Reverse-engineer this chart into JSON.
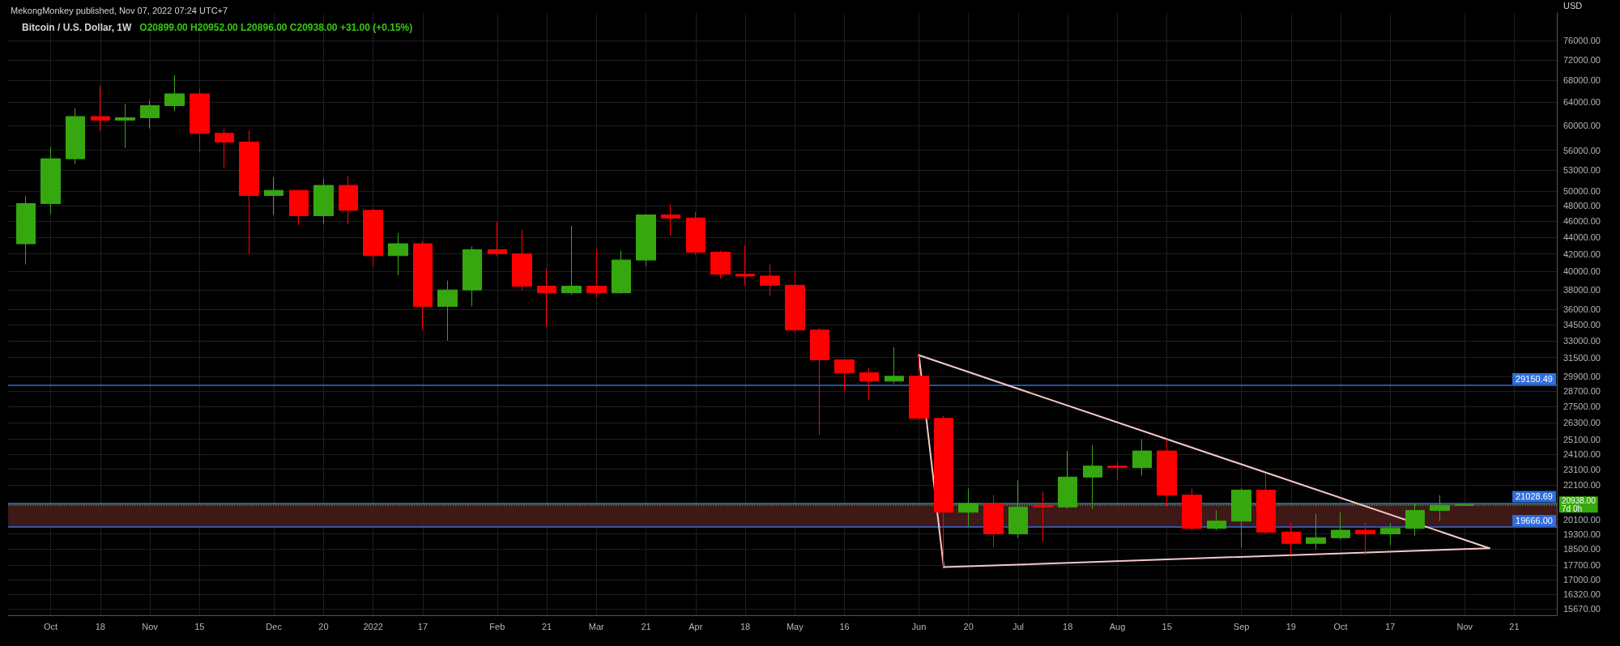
{
  "chart_data": {
    "type": "candlestick",
    "title": "Bitcoin / U.S. Dollar, 1W",
    "subtitle": "O20899.00 H20952.00 L20896.00 C20938.00 +31.00 (+0.15%)",
    "ylabel": "USD",
    "annotations": [
      "MekongMonkey published, Nov 07, 2022 07:24 UTC+7"
    ],
    "log": true,
    "grid": true,
    "xlim": [
      "2021-09-22",
      "2022-12-03"
    ],
    "xticks": [
      {
        "value": "2021-10-04",
        "label": "Oct"
      },
      {
        "value": "2021-10-18",
        "label": "18"
      },
      {
        "value": "2021-11-01",
        "label": "Nov"
      },
      {
        "value": "2021-11-15",
        "label": "15"
      },
      {
        "value": "2021-12-06",
        "label": "Dec"
      },
      {
        "value": "2021-12-20",
        "label": "20"
      },
      {
        "value": "2022-01-03",
        "label": "2022"
      },
      {
        "value": "2022-01-17",
        "label": "17"
      },
      {
        "value": "2022-02-07",
        "label": "Feb"
      },
      {
        "value": "2022-02-21",
        "label": "21"
      },
      {
        "value": "2022-03-07",
        "label": "Mar"
      },
      {
        "value": "2022-03-21",
        "label": "21"
      },
      {
        "value": "2022-04-04",
        "label": "Apr"
      },
      {
        "value": "2022-04-18",
        "label": "18"
      },
      {
        "value": "2022-05-02",
        "label": "May"
      },
      {
        "value": "2022-05-16",
        "label": "16"
      },
      {
        "value": "2022-06-06",
        "label": "Jun"
      },
      {
        "value": "2022-06-20",
        "label": "20"
      },
      {
        "value": "2022-07-04",
        "label": "Jul"
      },
      {
        "value": "2022-07-18",
        "label": "18"
      },
      {
        "value": "2022-08-01",
        "label": "Aug"
      },
      {
        "value": "2022-08-15",
        "label": "15"
      },
      {
        "value": "2022-09-05",
        "label": "Sep"
      },
      {
        "value": "2022-09-19",
        "label": "19"
      },
      {
        "value": "2022-10-03",
        "label": "Oct"
      },
      {
        "value": "2022-10-17",
        "label": "17"
      },
      {
        "value": "2022-11-07",
        "label": "Nov"
      },
      {
        "value": "2022-11-21",
        "label": "21"
      }
    ],
    "ylim": [
      15400,
      82000
    ],
    "yticks": [
      {
        "value": 15670,
        "label": "15670.00"
      },
      {
        "value": 16320,
        "label": "16320.00"
      },
      {
        "value": 17000,
        "label": "17000.00"
      },
      {
        "value": 17700,
        "label": "17700.00"
      },
      {
        "value": 18500,
        "label": "18500.00"
      },
      {
        "value": 19300,
        "label": "19300.00"
      },
      {
        "value": 20100,
        "label": "20100.00"
      },
      {
        "value": 22100,
        "label": "22100.00"
      },
      {
        "value": 23100,
        "label": "23100.00"
      },
      {
        "value": 24100,
        "label": "24100.00"
      },
      {
        "value": 25100,
        "label": "25100.00"
      },
      {
        "value": 26300,
        "label": "26300.00"
      },
      {
        "value": 27500,
        "label": "27500.00"
      },
      {
        "value": 28700,
        "label": "28700.00"
      },
      {
        "value": 29900,
        "label": "29900.00"
      },
      {
        "value": 31500,
        "label": "31500.00"
      },
      {
        "value": 33000,
        "label": "33000.00"
      },
      {
        "value": 34500,
        "label": "34500.00"
      },
      {
        "value": 36000,
        "label": "36000.00"
      },
      {
        "value": 38000,
        "label": "38000.00"
      },
      {
        "value": 40000,
        "label": "40000.00"
      },
      {
        "value": 42000,
        "label": "42000.00"
      },
      {
        "value": 44000,
        "label": "44000.00"
      },
      {
        "value": 46000,
        "label": "46000.00"
      },
      {
        "value": 48000,
        "label": "48000.00"
      },
      {
        "value": 50000,
        "label": "50000.00"
      },
      {
        "value": 53000,
        "label": "53000.00"
      },
      {
        "value": 56000,
        "label": "56000.00"
      },
      {
        "value": 60000,
        "label": "60000.00"
      },
      {
        "value": 64000,
        "label": "64000.00"
      },
      {
        "value": 68000,
        "label": "68000.00"
      },
      {
        "value": 72000,
        "label": "72000.00"
      },
      {
        "value": 76000,
        "label": "76000.00"
      }
    ],
    "ref_lines": [
      {
        "axis": "y",
        "value": 29150.49,
        "label": "29150.49",
        "color": "#2f6fdc",
        "line_style": "solid"
      },
      {
        "axis": "y",
        "value": 21028.69,
        "label": "21028.69",
        "color": "#2f6fdc",
        "line_style": "solid"
      },
      {
        "axis": "y",
        "value": 19666,
        "label": "19666.00",
        "color": "#2f6fdc",
        "line_style": "solid"
      },
      {
        "axis": "y",
        "value": 20938,
        "label": "20938.00\n7d 0h",
        "color": "#37a710",
        "line_style": "dotted"
      }
    ],
    "bands": [
      {
        "axis": "y",
        "from": 19666,
        "to": 21028.69,
        "color": "#4a1c1c"
      }
    ],
    "series": [
      {
        "type": "candlestick",
        "x": [
          "2021-09-27",
          "2021-10-04",
          "2021-10-11",
          "2021-10-18",
          "2021-10-25",
          "2021-11-01",
          "2021-11-08",
          "2021-11-15",
          "2021-11-22",
          "2021-11-29",
          "2021-12-06",
          "2021-12-13",
          "2021-12-20",
          "2021-12-27",
          "2022-01-03",
          "2022-01-10",
          "2022-01-17",
          "2022-01-24",
          "2022-01-31",
          "2022-02-07",
          "2022-02-14",
          "2022-02-21",
          "2022-02-28",
          "2022-03-07",
          "2022-03-14",
          "2022-03-21",
          "2022-03-28",
          "2022-04-04",
          "2022-04-11",
          "2022-04-18",
          "2022-04-25",
          "2022-05-02",
          "2022-05-09",
          "2022-05-16",
          "2022-05-23",
          "2022-05-30",
          "2022-06-06",
          "2022-06-13",
          "2022-06-20",
          "2022-06-27",
          "2022-07-04",
          "2022-07-11",
          "2022-07-18",
          "2022-07-25",
          "2022-08-01",
          "2022-08-08",
          "2022-08-15",
          "2022-08-22",
          "2022-08-29",
          "2022-09-05",
          "2022-09-12",
          "2022-09-19",
          "2022-09-26",
          "2022-10-03",
          "2022-10-10",
          "2022-10-17",
          "2022-10-24",
          "2022-10-31",
          "2022-11-07"
        ],
        "ohlc": [
          [
            43200,
            49300,
            40800,
            48300
          ],
          [
            48300,
            56500,
            46900,
            54700
          ],
          [
            54700,
            62900,
            53900,
            61500
          ],
          [
            61500,
            67000,
            59100,
            60900
          ],
          [
            60900,
            63700,
            56400,
            61300
          ],
          [
            61300,
            64300,
            59500,
            63400
          ],
          [
            63400,
            69000,
            62400,
            65500
          ],
          [
            65500,
            66400,
            55700,
            58700
          ],
          [
            58700,
            59500,
            53300,
            57300
          ],
          [
            57300,
            59200,
            42000,
            49400
          ],
          [
            49400,
            52000,
            46800,
            50100
          ],
          [
            50100,
            50200,
            45500,
            46700
          ],
          [
            46700,
            51800,
            45600,
            50800
          ],
          [
            50800,
            52100,
            45600,
            47400
          ],
          [
            47400,
            47600,
            40600,
            41800
          ],
          [
            41800,
            44500,
            39600,
            43200
          ],
          [
            43200,
            43500,
            34000,
            36300
          ],
          [
            36300,
            39000,
            33000,
            38000
          ],
          [
            38000,
            42900,
            36300,
            42500
          ],
          [
            42500,
            45900,
            41700,
            42000
          ],
          [
            42000,
            44900,
            38000,
            38400
          ],
          [
            38400,
            40300,
            34300,
            37700
          ],
          [
            37700,
            45400,
            37500,
            38400
          ],
          [
            38400,
            42600,
            37200,
            37700
          ],
          [
            37700,
            42400,
            37600,
            41300
          ],
          [
            41300,
            46900,
            40600,
            46800
          ],
          [
            46800,
            48200,
            44200,
            46400
          ],
          [
            46400,
            47200,
            41900,
            42200
          ],
          [
            42200,
            42400,
            39200,
            39700
          ],
          [
            39700,
            43000,
            38500,
            39500
          ],
          [
            39500,
            40800,
            37400,
            38500
          ],
          [
            38500,
            40100,
            33800,
            34000
          ],
          [
            34000,
            34200,
            25400,
            31300
          ],
          [
            31300,
            31300,
            28700,
            30200
          ],
          [
            30200,
            30600,
            28000,
            29500
          ],
          [
            29500,
            32400,
            29300,
            29900
          ],
          [
            29900,
            31700,
            26500,
            26600
          ],
          [
            26600,
            26800,
            17600,
            20500
          ],
          [
            20500,
            21900,
            19700,
            21000
          ],
          [
            21000,
            21500,
            18600,
            19300
          ],
          [
            19300,
            22400,
            19100,
            20800
          ],
          [
            20900,
            21700,
            18900,
            20800
          ],
          [
            20800,
            24300,
            20700,
            22600
          ],
          [
            22600,
            24700,
            20700,
            23300
          ],
          [
            23300,
            23600,
            22400,
            23200
          ],
          [
            23200,
            25100,
            22700,
            24300
          ],
          [
            24300,
            25100,
            20800,
            21500
          ],
          [
            21500,
            21900,
            19500,
            19600
          ],
          [
            19600,
            20600,
            19500,
            20000
          ],
          [
            20000,
            21900,
            18600,
            21800
          ],
          [
            21800,
            22800,
            19300,
            19400
          ],
          [
            19400,
            19900,
            18200,
            18800
          ],
          [
            18800,
            20400,
            18500,
            19100
          ],
          [
            19100,
            20500,
            19000,
            19500
          ],
          [
            19500,
            19900,
            18200,
            19300
          ],
          [
            19300,
            19900,
            18700,
            19600
          ],
          [
            19600,
            21000,
            19200,
            20600
          ],
          [
            20600,
            21500,
            20000,
            20900
          ],
          [
            20899,
            20952,
            20896,
            20938
          ]
        ],
        "colors": [
          "#37a710",
          "#37a710",
          "#37a710",
          "#ff0000",
          "#37a710",
          "#37a710",
          "#37a710",
          "#ff0000",
          "#ff0000",
          "#ff0000",
          "#37a710",
          "#ff0000",
          "#37a710",
          "#ff0000",
          "#ff0000",
          "#37a710",
          "#ff0000",
          "#37a710",
          "#37a710",
          "#ff0000",
          "#ff0000",
          "#ff0000",
          "#37a710",
          "#ff0000",
          "#37a710",
          "#37a710",
          "#ff0000",
          "#ff0000",
          "#ff0000",
          "#ff0000",
          "#ff0000",
          "#ff0000",
          "#ff0000",
          "#ff0000",
          "#ff0000",
          "#37a710",
          "#ff0000",
          "#ff0000",
          "#37a710",
          "#ff0000",
          "#37a710",
          "#ff0000",
          "#37a710",
          "#37a710",
          "#ff0000",
          "#37a710",
          "#ff0000",
          "#ff0000",
          "#37a710",
          "#37a710",
          "#ff0000",
          "#ff0000",
          "#37a710",
          "#37a710",
          "#ff0000",
          "#37a710",
          "#37a710",
          "#37a710",
          "#37a710"
        ]
      },
      {
        "type": "line",
        "color": "#f6c9c9",
        "x": [
          "2022-06-06",
          "2022-11-14"
        ],
        "values": [
          31700,
          18550
        ]
      },
      {
        "type": "line",
        "color": "#f6c9c9",
        "x": [
          "2022-06-13",
          "2022-11-14"
        ],
        "values": [
          17600,
          18550
        ]
      },
      {
        "type": "line",
        "color": "#f6c9c9",
        "x": [
          "2022-06-06",
          "2022-06-13"
        ],
        "values": [
          31700,
          17600
        ]
      }
    ]
  }
}
